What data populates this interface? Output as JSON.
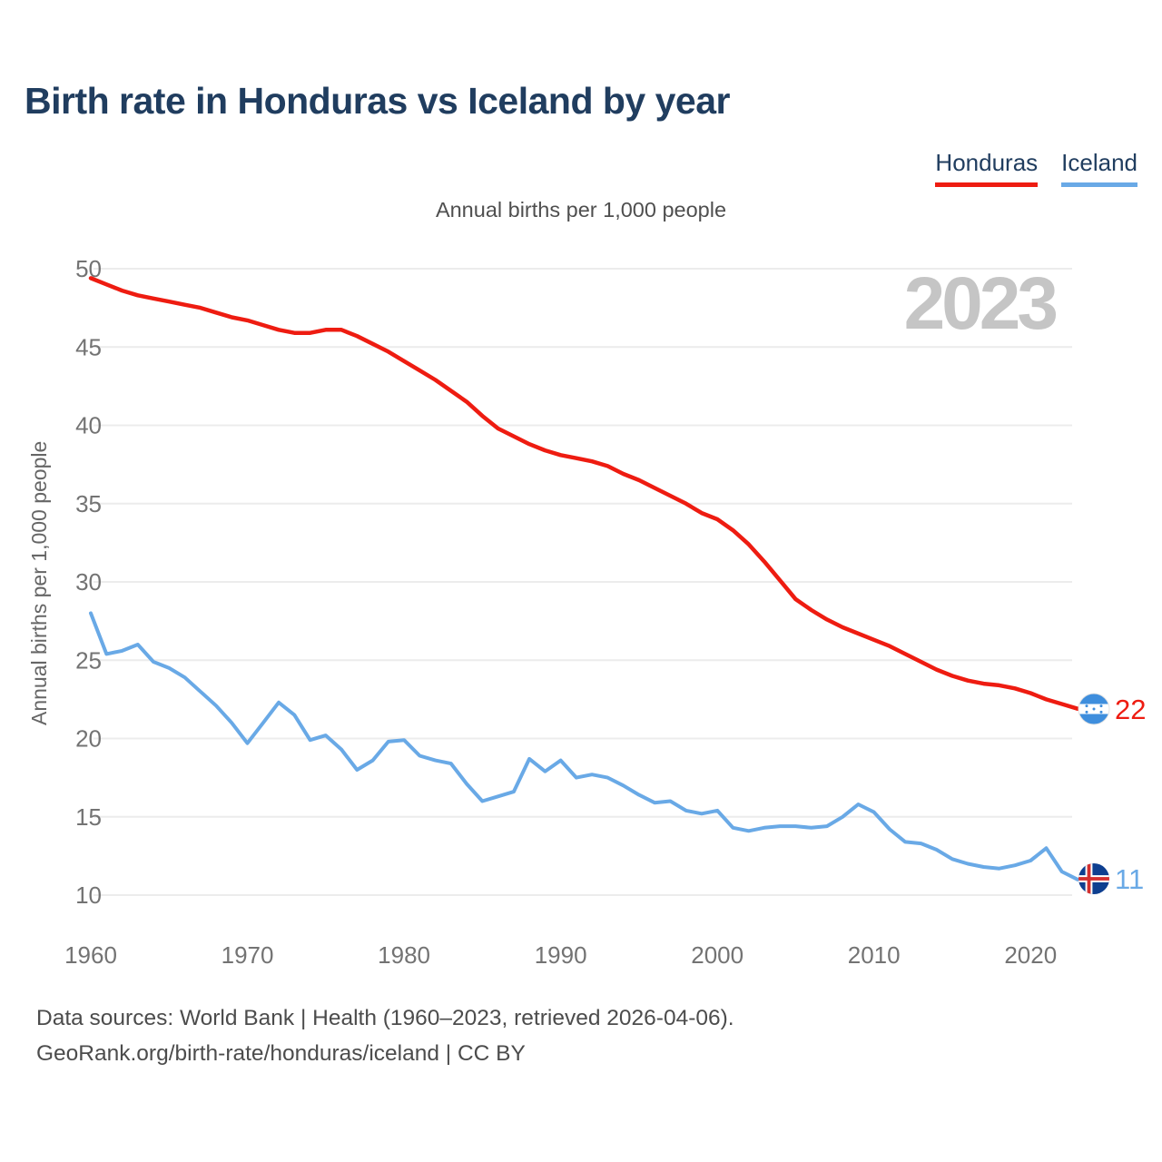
{
  "title": "Birth rate in Honduras vs Iceland by year",
  "subtitle": "Annual births per 1,000 people",
  "watermark": "2023",
  "legend": [
    {
      "label": "Honduras",
      "color": "#ee1c11"
    },
    {
      "label": "Iceland",
      "color": "#69a9e6"
    }
  ],
  "y_axis": {
    "label": "Annual births per 1,000 people"
  },
  "end_labels": [
    {
      "series": "Honduras",
      "value": "22"
    },
    {
      "series": "Iceland",
      "value": "11"
    }
  ],
  "footer": {
    "line1": "Data sources: World Bank | Health (1960–2023, retrieved 2026-04-06).",
    "line2": "GeoRank.org/birth-rate/honduras/iceland | CC BY"
  },
  "chart_data": {
    "type": "line",
    "title": "Annual births per 1,000 people",
    "xlabel": "",
    "ylabel": "Annual births per 1,000 people",
    "ylim": [
      10,
      50
    ],
    "grid": "horizontal",
    "legend_position": "top-right",
    "y_ticks": [
      50,
      45,
      40,
      35,
      30,
      25,
      20,
      15,
      10
    ],
    "x_ticks": [
      1960,
      1970,
      1980,
      1990,
      2000,
      2010,
      2020
    ],
    "x_range": [
      1960,
      2023
    ],
    "years": [
      1960,
      1961,
      1962,
      1963,
      1964,
      1965,
      1966,
      1967,
      1968,
      1969,
      1970,
      1971,
      1972,
      1973,
      1974,
      1975,
      1976,
      1977,
      1978,
      1979,
      1980,
      1981,
      1982,
      1983,
      1984,
      1985,
      1986,
      1987,
      1988,
      1989,
      1990,
      1991,
      1992,
      1993,
      1994,
      1995,
      1996,
      1997,
      1998,
      1999,
      2000,
      2001,
      2002,
      2003,
      2004,
      2005,
      2006,
      2007,
      2008,
      2009,
      2010,
      2011,
      2012,
      2013,
      2014,
      2015,
      2016,
      2017,
      2018,
      2019,
      2020,
      2021,
      2022,
      2023
    ],
    "series": [
      {
        "name": "Honduras",
        "color": "#ee1c11",
        "values": [
          49.4,
          49.0,
          48.6,
          48.3,
          48.1,
          47.9,
          47.7,
          47.5,
          47.2,
          46.9,
          46.7,
          46.4,
          46.1,
          45.9,
          45.9,
          46.1,
          46.1,
          45.7,
          45.2,
          44.7,
          44.1,
          43.5,
          42.9,
          42.2,
          41.5,
          40.6,
          39.8,
          39.3,
          38.8,
          38.4,
          38.1,
          37.9,
          37.7,
          37.4,
          36.9,
          36.5,
          36.0,
          35.5,
          35.0,
          34.4,
          34.0,
          33.3,
          32.4,
          31.3,
          30.1,
          28.9,
          28.2,
          27.6,
          27.1,
          26.7,
          26.3,
          25.9,
          25.4,
          24.9,
          24.4,
          24.0,
          23.7,
          23.5,
          23.4,
          23.2,
          22.9,
          22.5,
          22.2,
          21.9
        ]
      },
      {
        "name": "Iceland",
        "color": "#69a9e6",
        "values": [
          28.0,
          25.4,
          25.6,
          26.0,
          24.9,
          24.5,
          23.9,
          23.0,
          22.1,
          21.0,
          19.7,
          21.0,
          22.3,
          21.5,
          19.9,
          20.2,
          19.3,
          18.0,
          18.6,
          19.8,
          19.9,
          18.9,
          18.6,
          18.4,
          17.1,
          16.0,
          16.3,
          16.6,
          18.7,
          17.9,
          18.6,
          17.5,
          17.7,
          17.5,
          17.0,
          16.4,
          15.9,
          16.0,
          15.4,
          15.2,
          15.4,
          14.3,
          14.1,
          14.3,
          14.4,
          14.4,
          14.3,
          14.4,
          15.0,
          15.8,
          15.3,
          14.2,
          13.4,
          13.3,
          12.9,
          12.3,
          12.0,
          11.8,
          11.7,
          11.9,
          12.2,
          13.0,
          11.5,
          11.0
        ]
      }
    ]
  },
  "colors": {
    "title": "#203d5f",
    "tick_label": "#737373",
    "gridline": "#ececec",
    "watermark": "#c5c5c5",
    "honduras_flag_blue": "#3e8edd",
    "iceland_flag_blue": "#0e3f90",
    "iceland_flag_red": "#d32f2f"
  }
}
